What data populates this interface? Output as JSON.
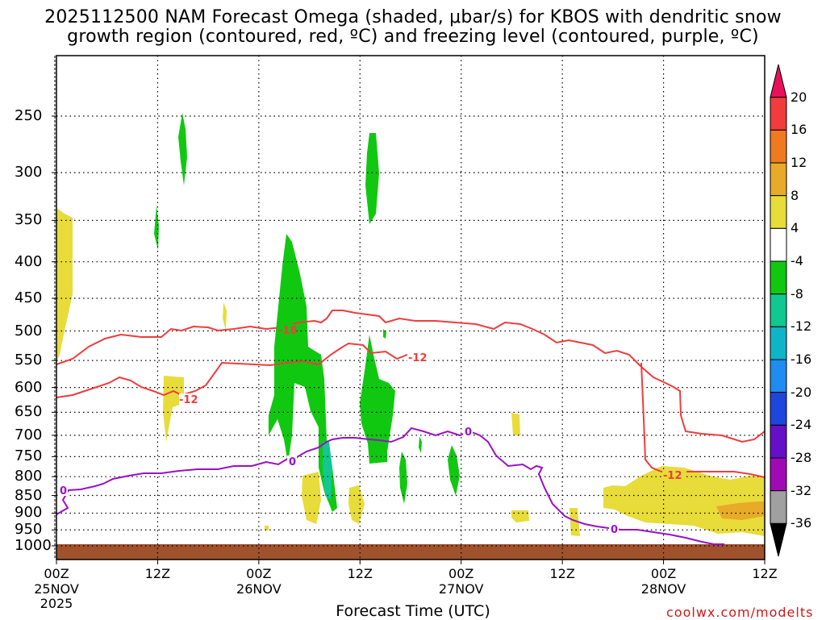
{
  "chart_data": {
    "type": "heatmap",
    "title_line1": "2025112500 NAM Forecast Omega (shaded, μbar/s) for KBOS with dendritic snow",
    "title_line2": "growth region (contoured, red, ºC) and freezing level (contoured, purple, ºC)",
    "xlabel": "Forecast Time (UTC)",
    "credit": "coolwx.com/modelts",
    "y_ticks": [
      "250",
      "300",
      "350",
      "400",
      "450",
      "500",
      "550",
      "600",
      "650",
      "700",
      "750",
      "800",
      "850",
      "900",
      "950",
      "1000"
    ],
    "x_ticks": [
      {
        "label": "00Z",
        "sub": "25NOV",
        "sub2": "2025"
      },
      {
        "label": "12Z",
        "sub": "",
        "sub2": ""
      },
      {
        "label": "00Z",
        "sub": "26NOV",
        "sub2": ""
      },
      {
        "label": "12Z",
        "sub": "",
        "sub2": ""
      },
      {
        "label": "00Z",
        "sub": "27NOV",
        "sub2": ""
      },
      {
        "label": "12Z",
        "sub": "",
        "sub2": ""
      },
      {
        "label": "00Z",
        "sub": "28NOV",
        "sub2": ""
      },
      {
        "label": "12Z",
        "sub": "",
        "sub2": ""
      }
    ],
    "contour_labels": {
      "red_upper": "-18",
      "red_lower_left": "-12",
      "red_upper_mid": "-12",
      "red_lower_right": "-12",
      "purple_left": "0",
      "purple_mid1": "0",
      "purple_mid2": "0",
      "purple_right": "0"
    },
    "colorbar": {
      "labels": [
        "20",
        "16",
        "12",
        "8",
        "4",
        "-4",
        "-8",
        "-12",
        "-16",
        "-20",
        "-24",
        "-28",
        "-32",
        "-36"
      ],
      "colors": [
        "#e8105a",
        "#f03c3c",
        "#f07a20",
        "#e8aa28",
        "#e8dc3a",
        "#ffffff",
        "#10c810",
        "#10c890",
        "#10b4c8",
        "#1e8cf0",
        "#1e46dc",
        "#6410c8",
        "#a00ab4",
        "#a0a0a0",
        "#000000"
      ]
    },
    "shading_colors": {
      "green": "#10c810",
      "teal": "#10c890",
      "yellow": "#e8dc3a",
      "orange": "#e8aa28",
      "ground": "#a0522d"
    },
    "contour_colors": {
      "red": "#f03c3c",
      "purple": "#9a10c8"
    }
  }
}
